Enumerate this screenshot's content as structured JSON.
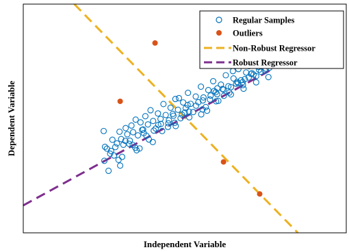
{
  "chart_data": {
    "type": "scatter",
    "title": "",
    "xlabel": "Independent Variable",
    "ylabel": "Dependent Variable",
    "xlim": [
      0,
      100
    ],
    "ylim": [
      0,
      100
    ],
    "grid": false,
    "ticks": false,
    "legend_position": "top-right",
    "series": [
      {
        "name": "Regular Samples",
        "kind": "scatter",
        "marker": "open-circle",
        "color": "#0072BD",
        "x": [
          25.1,
          25.9,
          26.9,
          27.6,
          28.5,
          29.0,
          29.8,
          30.3,
          31.0,
          31.7,
          32.2,
          33.0,
          33.5,
          34.0,
          34.8,
          35.5,
          36.3,
          37.1,
          37.8,
          38.6,
          39.4,
          40.2,
          41.0,
          41.7,
          42.5,
          43.4,
          44.1,
          44.9,
          45.6,
          46.3,
          47.1,
          47.9,
          48.7,
          49.5,
          50.3,
          51.0,
          51.8,
          52.6,
          53.4,
          54.2,
          55.0,
          55.8,
          56.5,
          57.3,
          58.0,
          58.8,
          59.6,
          60.4,
          61.2,
          62.0,
          62.7,
          63.5,
          64.3,
          65.1,
          65.9,
          66.6,
          67.4,
          68.2,
          69.0,
          69.8,
          70.5,
          71.3,
          72.1,
          72.8,
          73.6,
          74.4,
          75.1,
          75.9,
          76.7,
          77.5,
          78.3,
          79.0,
          25.3,
          27.2,
          29.5,
          31.6,
          33.9,
          36.0,
          38.1,
          40.4,
          42.6,
          44.8,
          46.9,
          49.1,
          51.3,
          53.5,
          55.6,
          57.8,
          60.0,
          62.1,
          64.3,
          66.5,
          68.6,
          70.8,
          73.0,
          75.2,
          77.3,
          79.1,
          26.4,
          30.6,
          34.7,
          38.9,
          43.0,
          47.2,
          51.4,
          55.5,
          59.7,
          63.8,
          68.0,
          72.1,
          76.2,
          28.1,
          32.8,
          37.3,
          41.8,
          46.5,
          50.9,
          56.9,
          61.7,
          66.2,
          70.5,
          74.8,
          78.0,
          30.0,
          35.1,
          40.1,
          45.1,
          50.0,
          55.1,
          60.1,
          64.9,
          69.9,
          24.9,
          36.8,
          48.2,
          59.1,
          67.9,
          73.3
        ],
        "y": [
          31.5,
          36.8,
          34.6,
          40.7,
          37.5,
          39.1,
          44.2,
          41.0,
          38.5,
          45.8,
          43.1,
          40.3,
          46.9,
          44.0,
          49.5,
          42.6,
          48.3,
          45.2,
          51.0,
          47.4,
          53.6,
          48.9,
          45.6,
          52.2,
          49.8,
          56.3,
          51.5,
          47.9,
          54.7,
          52.0,
          58.5,
          53.8,
          50.1,
          57.0,
          54.5,
          61.2,
          56.4,
          52.8,
          59.6,
          57.1,
          63.9,
          59.2,
          55.0,
          62.4,
          60.0,
          66.3,
          61.5,
          57.7,
          64.8,
          62.6,
          68.9,
          64.1,
          60.5,
          67.5,
          65.2,
          71.6,
          66.7,
          63.0,
          70.1,
          67.9,
          73.8,
          69.2,
          65.8,
          72.6,
          70.4,
          76.2,
          71.8,
          68.1,
          75.0,
          73.1,
          78.7,
          74.5,
          37.6,
          35.8,
          31.9,
          40.2,
          38.4,
          36.9,
          42.5,
          44.7,
          47.6,
          46.3,
          48.1,
          51.7,
          53.0,
          55.6,
          57.9,
          58.3,
          60.6,
          59.9,
          63.7,
          65.5,
          67.2,
          69.8,
          71.3,
          73.5,
          76.8,
          75.6,
          27.1,
          33.2,
          37.2,
          40.8,
          44.5,
          46.7,
          50.5,
          54.0,
          57.5,
          61.3,
          64.6,
          68.5,
          72.2,
          33.8,
          38.9,
          43.6,
          47.2,
          51.2,
          55.9,
          53.4,
          62.9,
          66.0,
          69.5,
          70.9,
          77.9,
          29.4,
          36.1,
          39.7,
          49.2,
          52.6,
          51.8,
          63.2,
          70.7,
          72.9,
          44.5,
          45.0,
          58.9,
          62.0,
          65.9,
          74.0
        ]
      },
      {
        "name": "Outliers",
        "kind": "scatter",
        "marker": "filled-circle",
        "color": "#D95319",
        "x": [
          30.0,
          40.8,
          62.0,
          73.2
        ],
        "y": [
          57.5,
          83.0,
          31.0,
          17.0
        ]
      },
      {
        "name": "Non-Robust Regressor",
        "kind": "line",
        "style": "dashed",
        "color": "#EDB120",
        "x": [
          15.8,
          85.0
        ],
        "y": [
          100.0,
          0.0
        ]
      },
      {
        "name": "Robust Regressor",
        "kind": "line",
        "style": "dashed",
        "color": "#7E2F8E",
        "x": [
          0.0,
          79.0
        ],
        "y": [
          12.0,
          73.0
        ]
      }
    ]
  }
}
